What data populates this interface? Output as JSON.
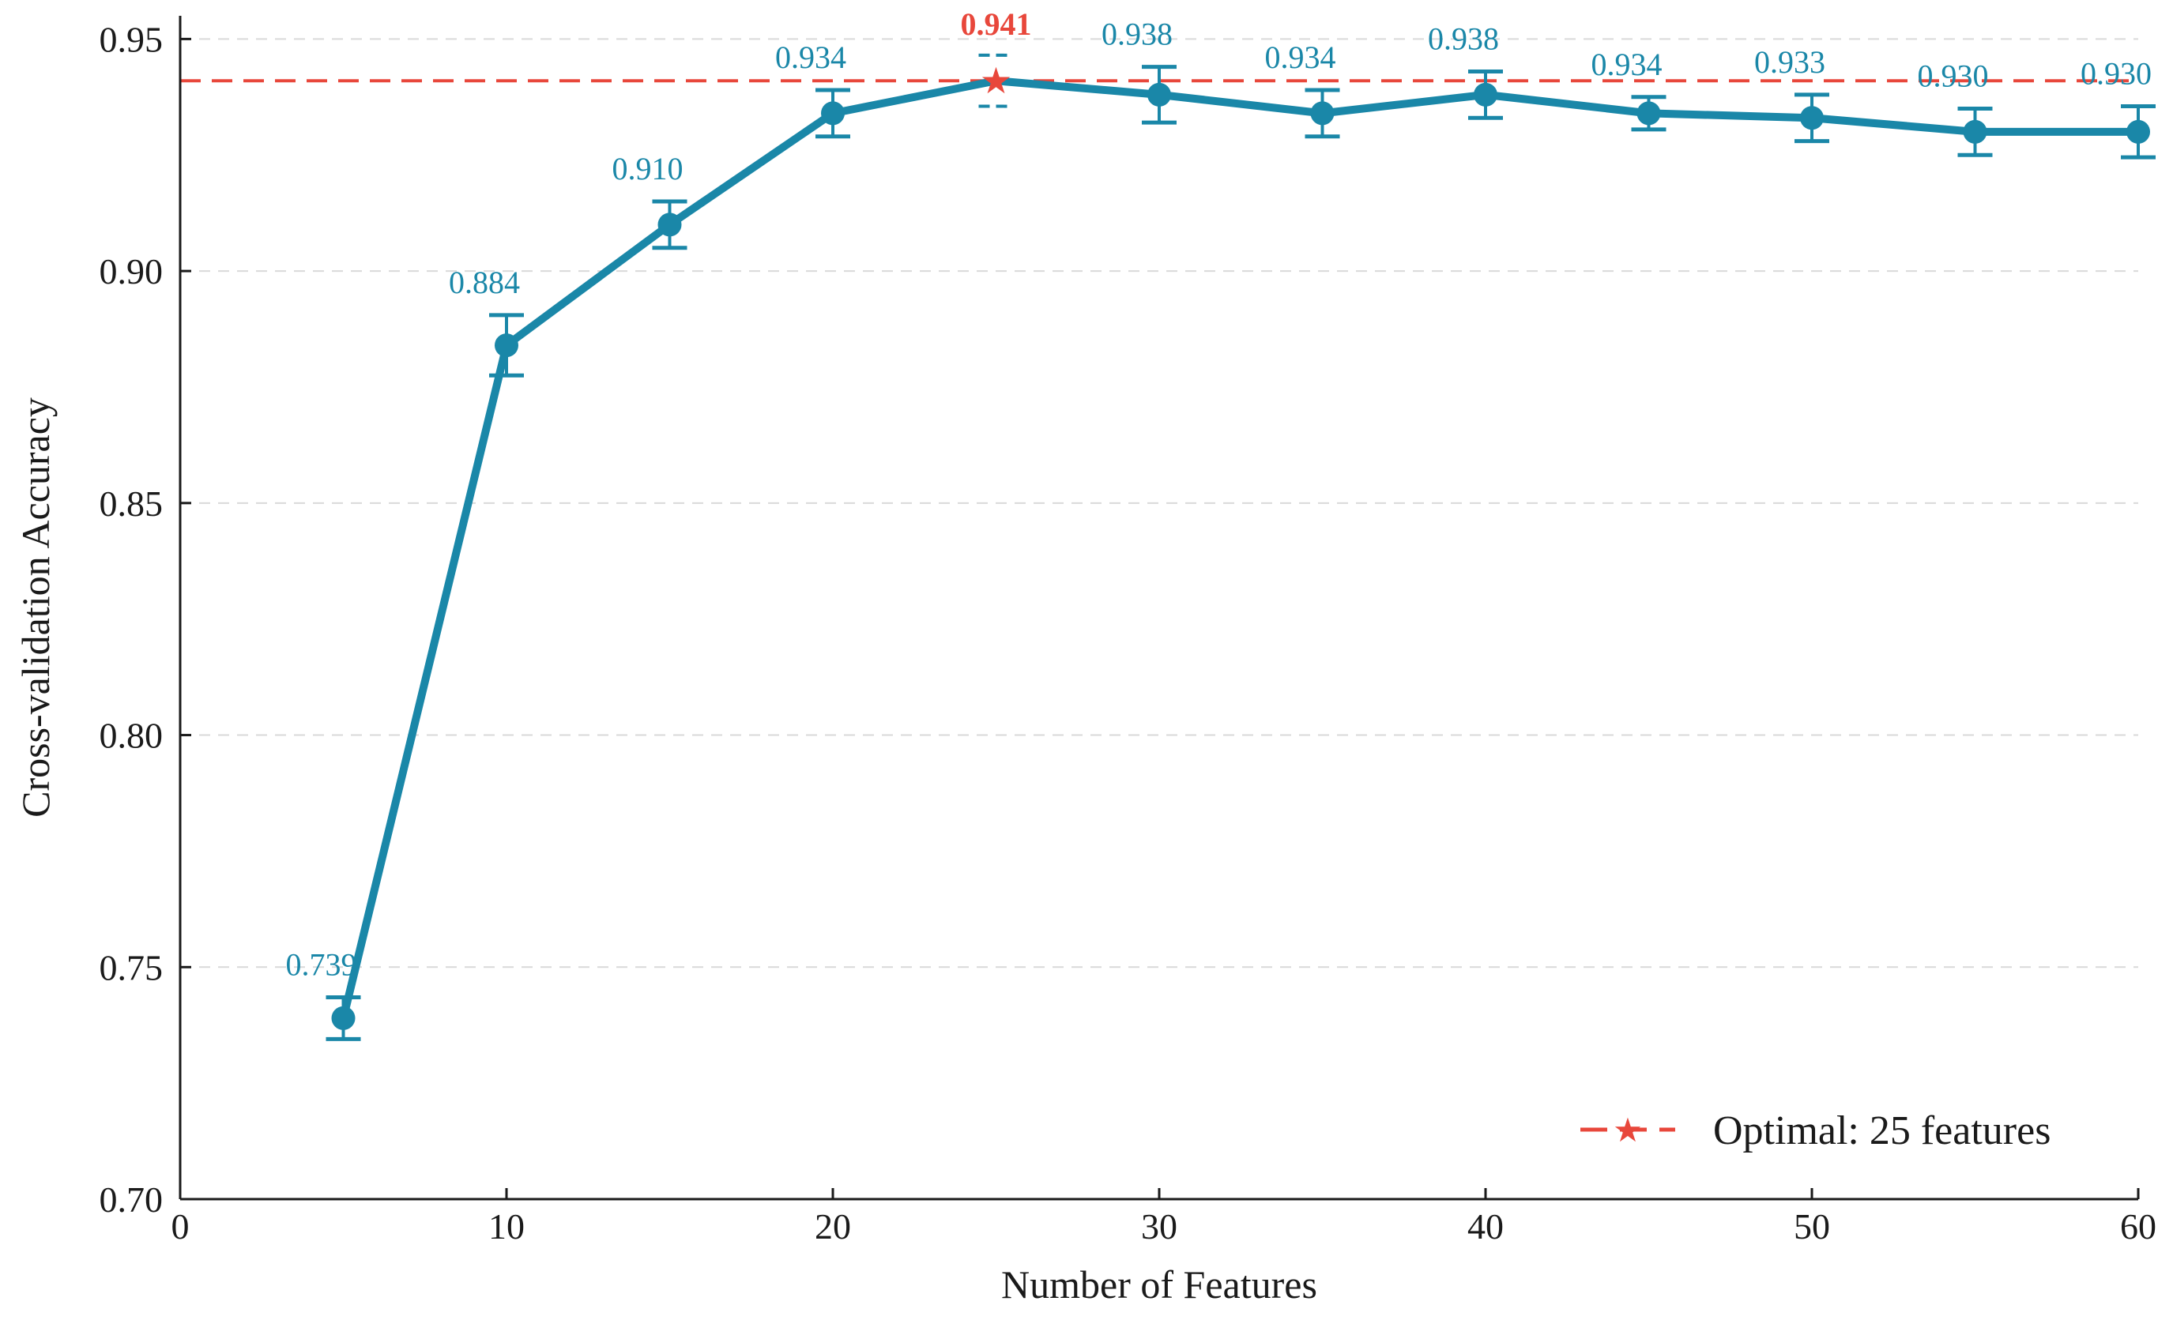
{
  "chart_data": {
    "type": "line",
    "title": "",
    "xlabel": "Number of Features",
    "ylabel": "Cross-validation Accuracy",
    "xlim": [
      0,
      60
    ],
    "ylim": [
      0.7,
      0.955
    ],
    "x_ticks": [
      0,
      10,
      20,
      30,
      40,
      50,
      60
    ],
    "x_tick_labels": [
      "0",
      "10",
      "20",
      "30",
      "40",
      "50",
      "60"
    ],
    "y_ticks": [
      0.7,
      0.75,
      0.8,
      0.85,
      0.9,
      0.95
    ],
    "y_tick_labels": [
      "0.70",
      "0.75",
      "0.80",
      "0.85",
      "0.90",
      "0.95"
    ],
    "grid": "horizontal dashed",
    "series": [
      {
        "x": [
          5,
          10,
          15,
          20,
          25,
          30,
          35,
          40,
          45,
          50,
          55,
          60
        ],
        "values": [
          0.739,
          0.884,
          0.91,
          0.934,
          0.941,
          0.938,
          0.934,
          0.938,
          0.934,
          0.933,
          0.93,
          0.93
        ],
        "error": [
          0.0045,
          0.0065,
          0.005,
          0.005,
          0.0055,
          0.006,
          0.005,
          0.005,
          0.0035,
          0.005,
          0.005,
          0.0055
        ],
        "labels": [
          "0.739",
          "0.884",
          "0.910",
          "0.934",
          "0.941",
          "0.938",
          "0.934",
          "0.938",
          "0.934",
          "0.933",
          "0.930",
          "0.930"
        ],
        "color": "#1a87a8"
      }
    ],
    "optimal": {
      "x": 25,
      "value": 0.941,
      "label": "0.941",
      "color": "#e8473b"
    },
    "legend": {
      "position": "bottom-right",
      "entries": [
        "Optimal: 25 features"
      ]
    }
  }
}
